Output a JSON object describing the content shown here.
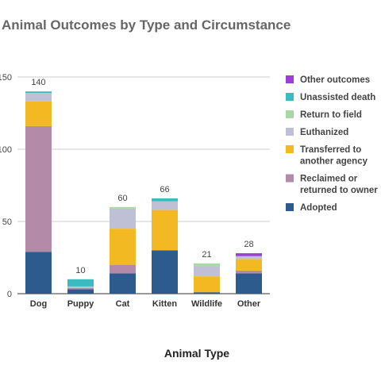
{
  "chart_data": {
    "type": "bar",
    "stacked": true,
    "title": "Animal Outcomes by Type and Circumstance",
    "xlabel": "Animal Type",
    "ylabel": "",
    "ylim": [
      0,
      150
    ],
    "yticks": [
      "0",
      "50",
      "100",
      "150"
    ],
    "grid": true,
    "legend_position": "right",
    "categories": [
      "Dog",
      "Puppy",
      "Cat",
      "Kitten",
      "Wildlife",
      "Other"
    ],
    "totals": [
      "140",
      "10",
      "60",
      "66",
      "21",
      "28"
    ],
    "series": [
      {
        "name": "Adopted",
        "color": "#2e5b8e",
        "values": [
          29,
          3,
          14,
          30,
          1,
          14
        ]
      },
      {
        "name": "Reclaimed or returned to owner",
        "color": "#b38aa8",
        "values": [
          87,
          1,
          6,
          0,
          0,
          2
        ]
      },
      {
        "name": "Transferred to another agency",
        "color": "#f3b923",
        "values": [
          17,
          0,
          25,
          28,
          11,
          8
        ]
      },
      {
        "name": "Euthanized",
        "color": "#bfc0d5",
        "values": [
          6,
          1,
          14,
          6,
          7,
          2
        ]
      },
      {
        "name": "Return to field",
        "color": "#aad7a6",
        "values": [
          0,
          0,
          1,
          0,
          2,
          0
        ]
      },
      {
        "name": "Unassisted death",
        "color": "#3bbac0",
        "values": [
          1,
          5,
          0,
          2,
          0,
          0
        ]
      },
      {
        "name": "Other outcomes",
        "color": "#9b3fd6",
        "values": [
          0,
          0,
          0,
          0,
          0,
          2
        ]
      }
    ]
  }
}
